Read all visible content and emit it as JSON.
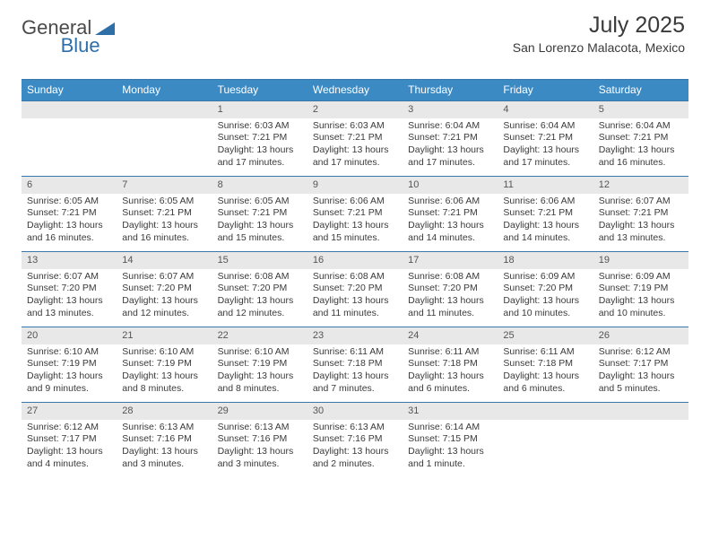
{
  "logo": {
    "text1": "General",
    "text2": "Blue"
  },
  "title": "July 2025",
  "subtitle": "San Lorenzo Malacota, Mexico",
  "colors": {
    "header_bg": "#3b8ac4",
    "header_text": "#ffffff",
    "border": "#3a77aa",
    "daynum_bg": "#e8e8e8",
    "body_text": "#3a3a3a"
  },
  "day_headers": [
    "Sunday",
    "Monday",
    "Tuesday",
    "Wednesday",
    "Thursday",
    "Friday",
    "Saturday"
  ],
  "weeks": [
    [
      null,
      null,
      {
        "n": "1",
        "sr": "6:03 AM",
        "ss": "7:21 PM",
        "dl": "13 hours and 17 minutes."
      },
      {
        "n": "2",
        "sr": "6:03 AM",
        "ss": "7:21 PM",
        "dl": "13 hours and 17 minutes."
      },
      {
        "n": "3",
        "sr": "6:04 AM",
        "ss": "7:21 PM",
        "dl": "13 hours and 17 minutes."
      },
      {
        "n": "4",
        "sr": "6:04 AM",
        "ss": "7:21 PM",
        "dl": "13 hours and 17 minutes."
      },
      {
        "n": "5",
        "sr": "6:04 AM",
        "ss": "7:21 PM",
        "dl": "13 hours and 16 minutes."
      }
    ],
    [
      {
        "n": "6",
        "sr": "6:05 AM",
        "ss": "7:21 PM",
        "dl": "13 hours and 16 minutes."
      },
      {
        "n": "7",
        "sr": "6:05 AM",
        "ss": "7:21 PM",
        "dl": "13 hours and 16 minutes."
      },
      {
        "n": "8",
        "sr": "6:05 AM",
        "ss": "7:21 PM",
        "dl": "13 hours and 15 minutes."
      },
      {
        "n": "9",
        "sr": "6:06 AM",
        "ss": "7:21 PM",
        "dl": "13 hours and 15 minutes."
      },
      {
        "n": "10",
        "sr": "6:06 AM",
        "ss": "7:21 PM",
        "dl": "13 hours and 14 minutes."
      },
      {
        "n": "11",
        "sr": "6:06 AM",
        "ss": "7:21 PM",
        "dl": "13 hours and 14 minutes."
      },
      {
        "n": "12",
        "sr": "6:07 AM",
        "ss": "7:21 PM",
        "dl": "13 hours and 13 minutes."
      }
    ],
    [
      {
        "n": "13",
        "sr": "6:07 AM",
        "ss": "7:20 PM",
        "dl": "13 hours and 13 minutes."
      },
      {
        "n": "14",
        "sr": "6:07 AM",
        "ss": "7:20 PM",
        "dl": "13 hours and 12 minutes."
      },
      {
        "n": "15",
        "sr": "6:08 AM",
        "ss": "7:20 PM",
        "dl": "13 hours and 12 minutes."
      },
      {
        "n": "16",
        "sr": "6:08 AM",
        "ss": "7:20 PM",
        "dl": "13 hours and 11 minutes."
      },
      {
        "n": "17",
        "sr": "6:08 AM",
        "ss": "7:20 PM",
        "dl": "13 hours and 11 minutes."
      },
      {
        "n": "18",
        "sr": "6:09 AM",
        "ss": "7:20 PM",
        "dl": "13 hours and 10 minutes."
      },
      {
        "n": "19",
        "sr": "6:09 AM",
        "ss": "7:19 PM",
        "dl": "13 hours and 10 minutes."
      }
    ],
    [
      {
        "n": "20",
        "sr": "6:10 AM",
        "ss": "7:19 PM",
        "dl": "13 hours and 9 minutes."
      },
      {
        "n": "21",
        "sr": "6:10 AM",
        "ss": "7:19 PM",
        "dl": "13 hours and 8 minutes."
      },
      {
        "n": "22",
        "sr": "6:10 AM",
        "ss": "7:19 PM",
        "dl": "13 hours and 8 minutes."
      },
      {
        "n": "23",
        "sr": "6:11 AM",
        "ss": "7:18 PM",
        "dl": "13 hours and 7 minutes."
      },
      {
        "n": "24",
        "sr": "6:11 AM",
        "ss": "7:18 PM",
        "dl": "13 hours and 6 minutes."
      },
      {
        "n": "25",
        "sr": "6:11 AM",
        "ss": "7:18 PM",
        "dl": "13 hours and 6 minutes."
      },
      {
        "n": "26",
        "sr": "6:12 AM",
        "ss": "7:17 PM",
        "dl": "13 hours and 5 minutes."
      }
    ],
    [
      {
        "n": "27",
        "sr": "6:12 AM",
        "ss": "7:17 PM",
        "dl": "13 hours and 4 minutes."
      },
      {
        "n": "28",
        "sr": "6:13 AM",
        "ss": "7:16 PM",
        "dl": "13 hours and 3 minutes."
      },
      {
        "n": "29",
        "sr": "6:13 AM",
        "ss": "7:16 PM",
        "dl": "13 hours and 3 minutes."
      },
      {
        "n": "30",
        "sr": "6:13 AM",
        "ss": "7:16 PM",
        "dl": "13 hours and 2 minutes."
      },
      {
        "n": "31",
        "sr": "6:14 AM",
        "ss": "7:15 PM",
        "dl": "13 hours and 1 minute."
      },
      null,
      null
    ]
  ],
  "labels": {
    "sunrise": "Sunrise:",
    "sunset": "Sunset:",
    "daylight": "Daylight:"
  }
}
